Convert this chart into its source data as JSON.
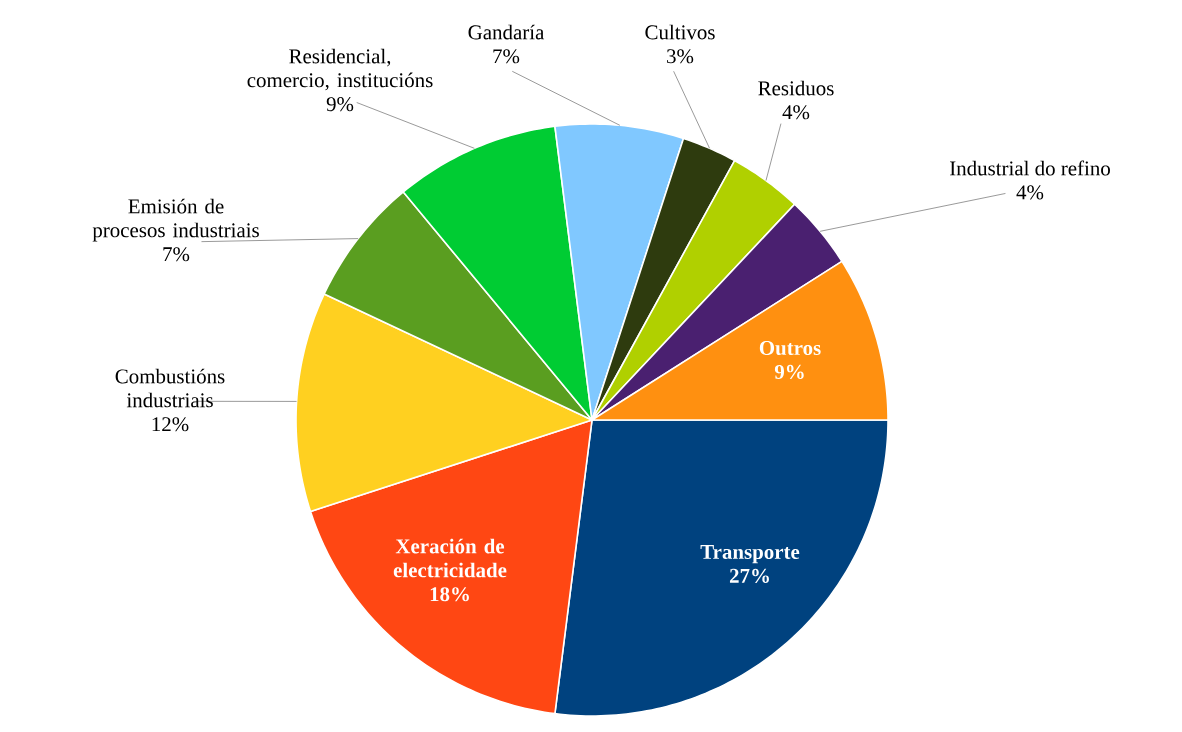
{
  "chart_data": {
    "type": "pie",
    "categories": [
      "Transporte",
      "Xeración de electricidade",
      "Combustións industriais",
      "Emisión de procesos industriais",
      "Residencial, comercio, institucións",
      "Gandaría",
      "Cultivos",
      "Residuos",
      "Industrial do refino",
      "Outros"
    ],
    "values": [
      27,
      18,
      12,
      7,
      9,
      7,
      3,
      4,
      4,
      9
    ],
    "value_labels": [
      "27%",
      "18%",
      "12%",
      "7%",
      "9%",
      "7%",
      "3%",
      "4%",
      "4%",
      "9%"
    ],
    "colors": [
      "#00427f",
      "#ff4713",
      "#ffd020",
      "#5a9e20",
      "#00cc33",
      "#80c8ff",
      "#2e3b0e",
      "#b0d000",
      "#4a2070",
      "#ff9010"
    ]
  }
}
